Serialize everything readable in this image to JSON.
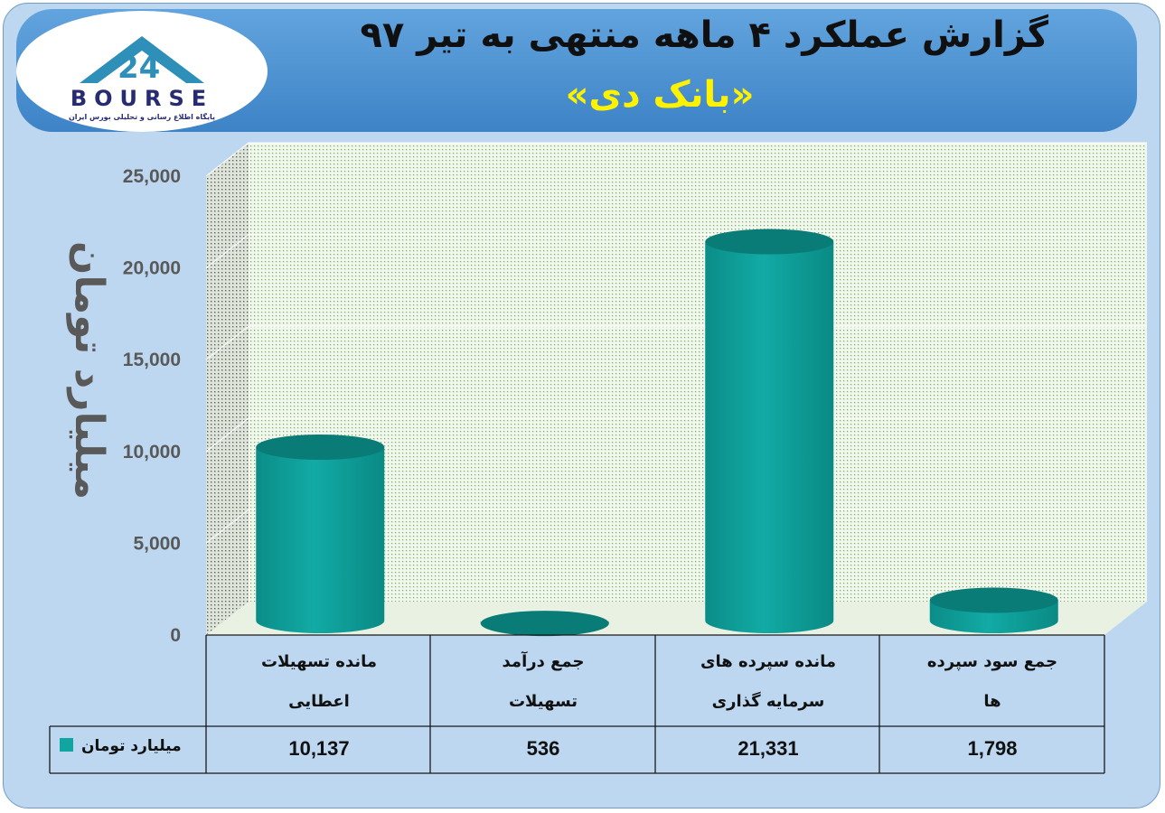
{
  "header": {
    "title": "گزارش عملکرد ۴ ماهه منتهی به تیر ۹۷",
    "subtitle": "«بانک دی»"
  },
  "logo": {
    "text": "BOURSE",
    "tagline": "پایگاه اطلاع رسانی و تحلیلی بورس ایران",
    "icon": "bourse24-logo-icon"
  },
  "colors": {
    "bar": "#0fa19c",
    "bar_top": "#0a7c78",
    "frame": "#bcd7ef",
    "banner": "#4d93d3",
    "subtitle": "#fff200"
  },
  "chart_data": {
    "type": "bar",
    "style": "3d-cylinder",
    "ylabel": "میلیارد تومان",
    "ylim": [
      0,
      25000
    ],
    "yticks": [
      "0",
      "5,000",
      "10,000",
      "15,000",
      "20,000",
      "25,000"
    ],
    "categories": [
      [
        "مانده تسهیلات",
        "اعطایی"
      ],
      [
        "جمع درآمد",
        "تسهیلات"
      ],
      [
        "مانده سپرده های",
        "سرمایه گذاری"
      ],
      [
        "جمع سود سپرده",
        "ها"
      ]
    ],
    "series": [
      {
        "name": "میلیارد تومان",
        "values": [
          10137,
          536,
          21331,
          1798
        ],
        "labels": [
          "10,137",
          "536",
          "21,331",
          "1,798"
        ]
      }
    ],
    "grid": true,
    "legend": "data-table"
  }
}
